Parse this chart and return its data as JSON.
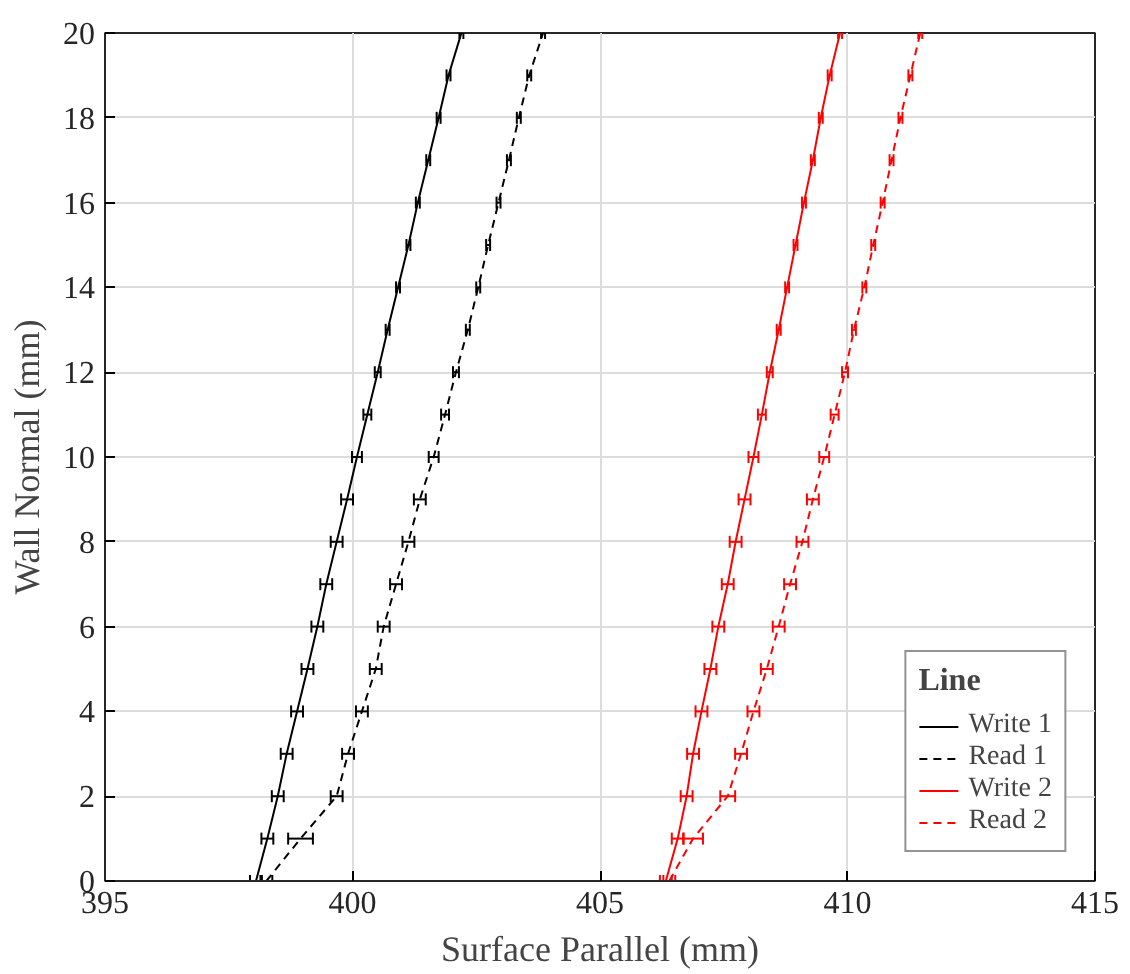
{
  "chart_data": {
    "type": "line",
    "xlabel": "Surface Parallel (mm)",
    "ylabel": "Wall Normal (mm)",
    "legend_title": "Line",
    "xlim": [
      395,
      415
    ],
    "xticks": [
      395,
      400,
      405,
      410,
      415
    ],
    "ylim": [
      0,
      20
    ],
    "yticks": [
      0,
      2,
      4,
      6,
      8,
      10,
      12,
      14,
      16,
      18,
      20
    ],
    "grid": true,
    "legend": "bottom right",
    "marker": "none",
    "series": [
      {
        "name": "Write 1",
        "color": "#000000",
        "line_style": "solid",
        "values": [
          0,
          1,
          2,
          3,
          4,
          5,
          6,
          7,
          8,
          9,
          10,
          11,
          12,
          13,
          14,
          15,
          16,
          17,
          18,
          19,
          20
        ],
        "x": [
          398.05,
          398.28,
          398.49,
          398.67,
          398.88,
          399.09,
          399.29,
          399.47,
          399.68,
          399.89,
          400.09,
          400.3,
          400.51,
          400.71,
          400.92,
          401.13,
          401.32,
          401.53,
          401.74,
          401.94,
          402.2
        ],
        "xerrors": [
          0.12,
          0.12,
          0.12,
          0.12,
          0.12,
          0.12,
          0.12,
          0.12,
          0.12,
          0.12,
          0.1,
          0.08,
          0.06,
          0.04,
          0.04,
          0.04,
          0.04,
          0.04,
          0.04,
          0.04,
          0.04
        ]
      },
      {
        "name": "Read 1",
        "color": "#000000",
        "line_style": "dashed",
        "values": [
          0,
          1,
          2,
          3,
          4,
          5,
          6,
          7,
          8,
          9,
          10,
          11,
          12,
          13,
          14,
          15,
          16,
          17,
          18,
          19,
          20
        ],
        "x": [
          398.26,
          398.95,
          399.68,
          399.91,
          400.19,
          400.47,
          400.63,
          400.88,
          401.13,
          401.36,
          401.64,
          401.87,
          402.09,
          402.33,
          402.54,
          402.74,
          402.95,
          403.16,
          403.36,
          403.57,
          403.85
        ],
        "xerrors": [
          0.12,
          0.25,
          0.12,
          0.12,
          0.12,
          0.12,
          0.12,
          0.12,
          0.12,
          0.12,
          0.1,
          0.08,
          0.06,
          0.04,
          0.04,
          0.04,
          0.04,
          0.04,
          0.04,
          0.04,
          0.04
        ]
      },
      {
        "name": "Write 2",
        "color": "#ff0000",
        "line_style": "solid",
        "values": [
          0,
          1,
          2,
          3,
          4,
          5,
          6,
          7,
          8,
          9,
          10,
          11,
          12,
          13,
          14,
          15,
          16,
          17,
          18,
          19,
          20
        ],
        "x": [
          406.33,
          406.57,
          406.75,
          406.88,
          407.05,
          407.23,
          407.39,
          407.58,
          407.74,
          407.92,
          408.1,
          408.27,
          408.43,
          408.61,
          408.78,
          408.95,
          409.12,
          409.3,
          409.46,
          409.64,
          409.85
        ],
        "xerrors": [
          0.12,
          0.12,
          0.12,
          0.12,
          0.12,
          0.12,
          0.12,
          0.12,
          0.12,
          0.12,
          0.1,
          0.08,
          0.06,
          0.04,
          0.04,
          0.04,
          0.04,
          0.04,
          0.04,
          0.04,
          0.04
        ]
      },
      {
        "name": "Read 2",
        "color": "#ff0000",
        "line_style": "dashed",
        "values": [
          0,
          1,
          2,
          3,
          4,
          5,
          6,
          7,
          8,
          9,
          10,
          11,
          12,
          13,
          14,
          15,
          16,
          17,
          18,
          19,
          20
        ],
        "x": [
          406.4,
          406.88,
          407.58,
          407.85,
          408.1,
          408.37,
          408.61,
          408.84,
          409.09,
          409.3,
          409.53,
          409.74,
          409.95,
          410.13,
          410.34,
          410.52,
          410.71,
          410.89,
          411.07,
          411.27,
          411.47
        ],
        "xerrors": [
          0.12,
          0.2,
          0.15,
          0.12,
          0.12,
          0.12,
          0.12,
          0.12,
          0.12,
          0.12,
          0.1,
          0.08,
          0.06,
          0.04,
          0.04,
          0.04,
          0.04,
          0.04,
          0.04,
          0.04,
          0.04
        ]
      }
    ]
  }
}
